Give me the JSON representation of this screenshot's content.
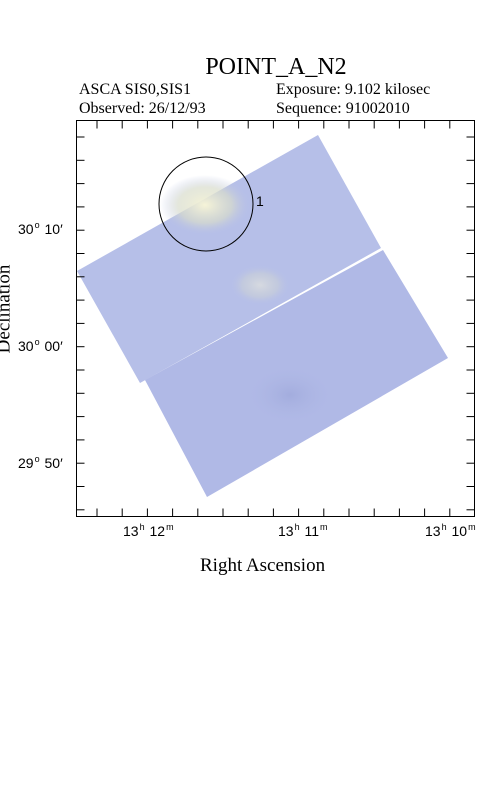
{
  "header": {
    "title": "POINT_A_N2",
    "instrument": "ASCA SIS0,SIS1",
    "exposure": "Exposure: 9.102 kilosec",
    "observed": "Observed: 26/12/93",
    "sequence": "Sequence: 91002010"
  },
  "axes": {
    "x_label": "Right Ascension",
    "y_label": "Declination",
    "x_ticks": [
      {
        "h": "13",
        "m": "12"
      },
      {
        "h": "13",
        "m": "11"
      },
      {
        "h": "13",
        "m": "10"
      }
    ],
    "y_ticks": [
      {
        "deg": "30",
        "min": "10"
      },
      {
        "deg": "30",
        "min": "00"
      },
      {
        "deg": "29",
        "min": "50"
      }
    ]
  },
  "source_marker": {
    "label": "1"
  },
  "colors": {
    "image_fill": "#b2bce8",
    "frame": "#000000"
  }
}
